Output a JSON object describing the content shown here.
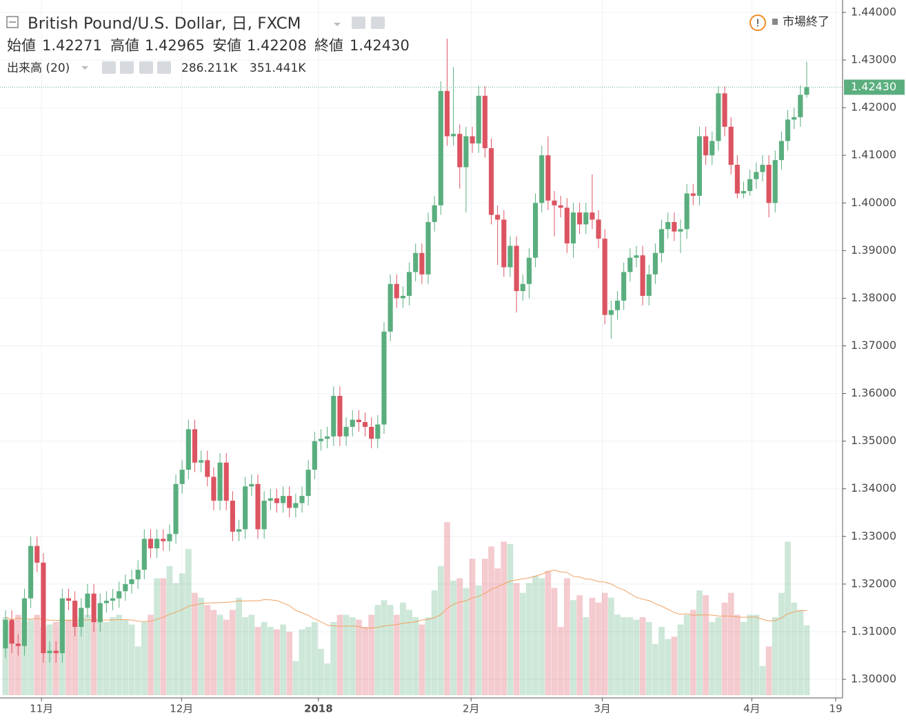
{
  "header": {
    "title": "British Pound/U.S. Dollar, 日, FXCM",
    "open_label": "始値",
    "open": 1.42271,
    "high_label": "高値",
    "high": 1.42965,
    "low_label": "安値",
    "low": 1.42208,
    "close_label": "終値",
    "close": {
      "value": 1.4243,
      "label": "1.42430"
    },
    "volume_label": "出来高 (20)",
    "volume": {
      "value": 286.211,
      "label": "286.211K"
    },
    "volume_ma": {
      "value": 351.441,
      "label": "351.441K"
    },
    "status": "市場終了"
  },
  "chart_data": {
    "type": "candlestick",
    "up_color": "#5aae7e",
    "down_color": "#dc5461",
    "ma_color": "#f0a060",
    "grid": true,
    "ylim": [
      1.2961,
      1.4426
    ],
    "yticks": [
      {
        "value": 1.3,
        "label": "1.30000"
      },
      {
        "value": 1.31,
        "label": "1.31000"
      },
      {
        "value": 1.32,
        "label": "1.32000"
      },
      {
        "value": 1.33,
        "label": "1.33000"
      },
      {
        "value": 1.34,
        "label": "1.34000"
      },
      {
        "value": 1.35,
        "label": "1.35000"
      },
      {
        "value": 1.36,
        "label": "1.36000"
      },
      {
        "value": 1.37,
        "label": "1.37000"
      },
      {
        "value": 1.38,
        "label": "1.38000"
      },
      {
        "value": 1.39,
        "label": "1.39000"
      },
      {
        "value": 1.4,
        "label": "1.40000"
      },
      {
        "value": 1.41,
        "label": "1.41000"
      },
      {
        "value": 1.42,
        "label": "1.42000"
      },
      {
        "value": 1.43,
        "label": "1.43000"
      },
      {
        "value": 1.44,
        "label": "1.44000"
      }
    ],
    "xticks": [
      {
        "value": 5.7,
        "label": "11月"
      },
      {
        "value": 27.9,
        "label": "12月"
      },
      {
        "value": 49.6,
        "label": "2018"
      },
      {
        "value": 73.8,
        "label": "2月"
      },
      {
        "value": 94.6,
        "label": "3月"
      },
      {
        "value": 118.3,
        "label": "4月"
      },
      {
        "value": 131.6,
        "label": "19"
      }
    ],
    "open": [
      1.3065,
      1.3125,
      1.3075,
      1.307,
      1.317,
      1.328,
      1.3245,
      1.3055,
      1.306,
      1.3055,
      1.317,
      1.3165,
      1.311,
      1.315,
      1.318,
      1.312,
      1.316,
      1.3165,
      1.317,
      1.3185,
      1.32,
      1.321,
      1.323,
      1.3295,
      1.3275,
      1.3295,
      1.329,
      1.3305,
      1.341,
      1.344,
      1.3525,
      1.3455,
      1.346,
      1.3425,
      1.3375,
      1.3455,
      1.3375,
      1.331,
      1.3315,
      1.3405,
      1.341,
      1.3315,
      1.3375,
      1.338,
      1.337,
      1.3385,
      1.336,
      1.337,
      1.3385,
      1.344,
      1.35,
      1.3505,
      1.351,
      1.3595,
      1.351,
      1.353,
      1.3545,
      1.354,
      1.353,
      1.3505,
      1.3535,
      1.373,
      1.383,
      1.38,
      1.3805,
      1.3855,
      1.3895,
      1.385,
      1.396,
      1.3995,
      1.4235,
      1.414,
      1.4145,
      1.4075,
      1.414,
      1.4125,
      1.4225,
      1.4115,
      1.3975,
      1.3965,
      1.3865,
      1.391,
      1.3815,
      1.383,
      1.3885,
      1.4,
      1.41,
      1.4005,
      1.3995,
      1.399,
      1.3915,
      1.398,
      1.3955,
      1.398,
      1.3965,
      1.3925,
      1.3765,
      1.3775,
      1.3795,
      1.3855,
      1.3885,
      1.389,
      1.3805,
      1.385,
      1.3895,
      1.3945,
      1.396,
      1.394,
      1.3945,
      1.402,
      1.4015,
      1.414,
      1.41,
      1.413,
      1.423,
      1.416,
      1.408,
      1.402,
      1.4025,
      1.405,
      1.4065,
      1.408,
      1.4,
      1.409,
      1.413,
      1.4175,
      1.418,
      1.42271
    ],
    "high": [
      1.3145,
      1.3145,
      1.3095,
      1.319,
      1.33,
      1.33,
      1.3265,
      1.308,
      1.308,
      1.319,
      1.319,
      1.3185,
      1.317,
      1.32,
      1.32,
      1.318,
      1.3185,
      1.319,
      1.3205,
      1.322,
      1.323,
      1.325,
      1.3315,
      1.3315,
      1.3315,
      1.3315,
      1.3325,
      1.343,
      1.346,
      1.3545,
      1.3545,
      1.348,
      1.348,
      1.3445,
      1.3475,
      1.3475,
      1.3395,
      1.3335,
      1.3425,
      1.343,
      1.343,
      1.3395,
      1.34,
      1.34,
      1.3405,
      1.3405,
      1.339,
      1.3405,
      1.346,
      1.352,
      1.3525,
      1.353,
      1.3615,
      1.3615,
      1.355,
      1.3565,
      1.3565,
      1.356,
      1.355,
      1.3555,
      1.375,
      1.385,
      1.385,
      1.3825,
      1.3875,
      1.3915,
      1.3915,
      1.398,
      1.4015,
      1.4255,
      1.4345,
      1.4285,
      1.4165,
      1.416,
      1.416,
      1.4245,
      1.4245,
      1.4135,
      1.3995,
      1.3985,
      1.393,
      1.393,
      1.385,
      1.3905,
      1.402,
      1.412,
      1.414,
      1.4025,
      1.4015,
      1.401,
      1.4,
      1.4,
      1.4,
      1.406,
      1.3985,
      1.3945,
      1.3795,
      1.3815,
      1.3875,
      1.3905,
      1.391,
      1.391,
      1.387,
      1.3915,
      1.3965,
      1.398,
      1.398,
      1.3965,
      1.404,
      1.404,
      1.416,
      1.416,
      1.415,
      1.4245,
      1.4245,
      1.418,
      1.41,
      1.4045,
      1.407,
      1.4085,
      1.41,
      1.41,
      1.411,
      1.415,
      1.4195,
      1.42,
      1.4247,
      1.42965
    ],
    "low": [
      1.3045,
      1.3055,
      1.305,
      1.305,
      1.315,
      1.3225,
      1.3035,
      1.3035,
      1.3035,
      1.3035,
      1.3145,
      1.309,
      1.309,
      1.313,
      1.31,
      1.31,
      1.314,
      1.3145,
      1.315,
      1.3165,
      1.318,
      1.319,
      1.321,
      1.3255,
      1.3255,
      1.327,
      1.327,
      1.3285,
      1.339,
      1.342,
      1.3435,
      1.3435,
      1.3405,
      1.3355,
      1.3355,
      1.3355,
      1.329,
      1.329,
      1.3295,
      1.3385,
      1.3295,
      1.3295,
      1.3355,
      1.335,
      1.335,
      1.334,
      1.334,
      1.335,
      1.3365,
      1.342,
      1.348,
      1.3485,
      1.349,
      1.349,
      1.349,
      1.351,
      1.352,
      1.351,
      1.3485,
      1.3485,
      1.3515,
      1.371,
      1.378,
      1.378,
      1.3785,
      1.3835,
      1.383,
      1.383,
      1.394,
      1.3975,
      1.412,
      1.412,
      1.403,
      1.398,
      1.4105,
      1.4105,
      1.4095,
      1.3955,
      1.387,
      1.3845,
      1.3845,
      1.377,
      1.3795,
      1.38,
      1.3865,
      1.398,
      1.3985,
      1.393,
      1.397,
      1.3895,
      1.3885,
      1.3935,
      1.3935,
      1.3945,
      1.3905,
      1.3745,
      1.3715,
      1.3755,
      1.3775,
      1.3835,
      1.3865,
      1.3785,
      1.3785,
      1.383,
      1.3875,
      1.3925,
      1.392,
      1.3895,
      1.3925,
      1.3995,
      1.3995,
      1.408,
      1.408,
      1.411,
      1.414,
      1.406,
      1.401,
      1.401,
      1.4015,
      1.403,
      1.4045,
      1.397,
      1.398,
      1.407,
      1.411,
      1.4155,
      1.416,
      1.42208
    ],
    "close": [
      1.3125,
      1.3075,
      1.307,
      1.317,
      1.328,
      1.3245,
      1.3055,
      1.306,
      1.3055,
      1.317,
      1.3165,
      1.311,
      1.315,
      1.318,
      1.312,
      1.316,
      1.3165,
      1.317,
      1.3185,
      1.32,
      1.321,
      1.323,
      1.3295,
      1.3275,
      1.3295,
      1.329,
      1.3305,
      1.341,
      1.344,
      1.3525,
      1.3455,
      1.346,
      1.3425,
      1.3375,
      1.3455,
      1.3375,
      1.331,
      1.3315,
      1.3405,
      1.341,
      1.3315,
      1.3375,
      1.338,
      1.337,
      1.3385,
      1.336,
      1.337,
      1.3385,
      1.344,
      1.35,
      1.3505,
      1.351,
      1.3595,
      1.351,
      1.353,
      1.3545,
      1.354,
      1.353,
      1.3505,
      1.3535,
      1.373,
      1.383,
      1.38,
      1.3805,
      1.3855,
      1.3895,
      1.385,
      1.396,
      1.3995,
      1.4235,
      1.414,
      1.4145,
      1.4075,
      1.414,
      1.4125,
      1.4225,
      1.4115,
      1.3975,
      1.3965,
      1.3865,
      1.391,
      1.3815,
      1.383,
      1.3885,
      1.4,
      1.41,
      1.4005,
      1.3995,
      1.399,
      1.3915,
      1.398,
      1.3955,
      1.398,
      1.3965,
      1.3925,
      1.3765,
      1.3775,
      1.3795,
      1.3855,
      1.3885,
      1.389,
      1.3805,
      1.385,
      1.3895,
      1.3945,
      1.396,
      1.394,
      1.3945,
      1.402,
      1.4015,
      1.414,
      1.41,
      1.413,
      1.423,
      1.416,
      1.408,
      1.402,
      1.4025,
      1.405,
      1.4065,
      1.408,
      1.4,
      1.409,
      1.413,
      1.4175,
      1.418,
      1.4227,
      1.4243
    ],
    "volume": [
      320,
      300,
      330,
      300,
      310,
      330,
      280,
      290,
      300,
      310,
      310,
      300,
      320,
      330,
      310,
      300,
      300,
      320,
      330,
      310,
      290,
      200,
      300,
      330,
      480,
      480,
      530,
      460,
      500,
      600,
      420,
      400,
      370,
      350,
      330,
      310,
      350,
      400,
      320,
      330,
      280,
      300,
      280,
      270,
      290,
      260,
      140,
      270,
      280,
      300,
      190,
      130,
      300,
      330,
      330,
      320,
      310,
      280,
      330,
      370,
      390,
      370,
      330,
      380,
      350,
      320,
      290,
      320,
      430,
      530,
      710,
      470,
      480,
      440,
      560,
      450,
      560,
      610,
      520,
      630,
      620,
      460,
      420,
      460,
      490,
      480,
      510,
      440,
      280,
      480,
      390,
      410,
      320,
      400,
      380,
      420,
      400,
      330,
      320,
      320,
      310,
      320,
      300,
      210,
      280,
      230,
      240,
      290,
      330,
      350,
      430,
      410,
      300,
      320,
      380,
      420,
      330,
      300,
      330,
      330,
      120,
      200,
      320,
      420,
      630,
      380,
      350,
      286.211
    ]
  }
}
